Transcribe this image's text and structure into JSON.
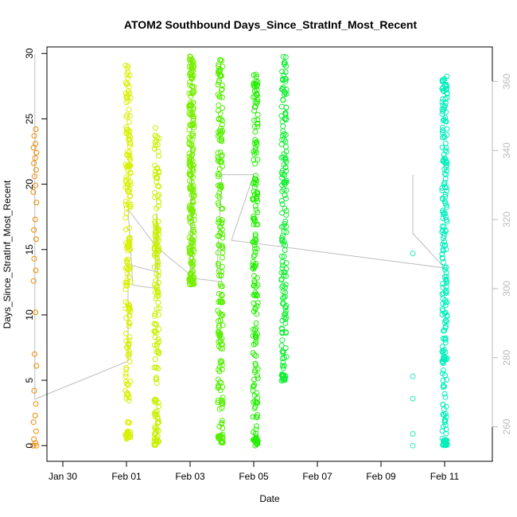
{
  "chart_data": {
    "type": "scatter",
    "title": "ATOM2 Southbound Days_Since_StratInf_Most_Recent",
    "xlabel": "Date",
    "ylabel": "Days_Since_StratInf_Most_Recent",
    "xlim": [
      "Jan 28 12:00",
      "Feb 11 12:00"
    ],
    "ylim": [
      -1.2,
      30.5
    ],
    "y2lim": [
      250,
      370
    ],
    "x_ticks": [
      "Jan 30",
      "Feb 01",
      "Feb 03",
      "Feb 05",
      "Feb 07",
      "Feb 09",
      "Feb 11"
    ],
    "y_ticks": [
      0,
      5,
      10,
      15,
      20,
      25,
      30
    ],
    "y2_ticks": [
      260,
      280,
      300,
      320,
      340,
      360
    ],
    "grid": false,
    "legend": "none",
    "marker": "open-circle",
    "clusters": [
      {
        "day": "Jan 29",
        "color": "#ee8800",
        "y_min": 0,
        "y_max": 24.3,
        "points": [
          [
            -0.05,
            0
          ],
          [
            -0.05,
            0
          ],
          [
            0.05,
            0
          ],
          [
            0.02,
            0.2
          ],
          [
            -0.03,
            0.5
          ],
          [
            0.04,
            1.1
          ],
          [
            -0.04,
            1.8
          ],
          [
            0.01,
            2.3
          ],
          [
            0.03,
            3.2
          ],
          [
            -0.02,
            4.2
          ],
          [
            0.05,
            6.1
          ],
          [
            -0.01,
            7.0
          ],
          [
            0.02,
            10.2
          ],
          [
            -0.04,
            12.6
          ],
          [
            0.03,
            13.4
          ],
          [
            -0.02,
            14.3
          ],
          [
            0.04,
            15.8
          ],
          [
            -0.03,
            16.5
          ],
          [
            0.01,
            17.3
          ],
          [
            0.05,
            18.6
          ],
          [
            -0.05,
            19.4
          ],
          [
            0.02,
            19.9
          ],
          [
            -0.01,
            20.6
          ],
          [
            0.04,
            21.1
          ],
          [
            -0.03,
            21.6
          ],
          [
            0.01,
            22.0
          ],
          [
            0.05,
            22.4
          ],
          [
            -0.04,
            22.8
          ],
          [
            0.02,
            23.1
          ],
          [
            -0.02,
            23.7
          ],
          [
            0.03,
            24.2
          ]
        ]
      },
      {
        "day": "Feb 01",
        "color": "#d8f000",
        "y_min": 0.5,
        "y_max": 29.3
      },
      {
        "day": "Feb 01 (late)",
        "color": "#c8f000",
        "y_min": 0,
        "y_max": 24.4
      },
      {
        "day": "Feb 03",
        "color": "#77ee00",
        "y_min": 12.3,
        "y_max": 29.8
      },
      {
        "day": "Feb 03 (late)",
        "color": "#55ee00",
        "y_min": 0.2,
        "y_max": 29.6
      },
      {
        "day": "Feb 05",
        "color": "#22ee00",
        "y_min": 0,
        "y_max": 28.6
      },
      {
        "day": "Feb 05 (late)",
        "color": "#11ee33",
        "y_min": 4.9,
        "y_max": 29.8
      },
      {
        "day": "Feb 10",
        "color": "#22eebb",
        "y_min": 0,
        "y_max": 14.8,
        "points": [
          [
            0.0,
            0
          ],
          [
            0.0,
            0.9
          ],
          [
            0.0,
            3.6
          ],
          [
            0.0,
            5.3
          ],
          [
            0.0,
            14.7
          ]
        ]
      },
      {
        "day": "Feb 11",
        "color": "#00eebb",
        "y_min": 0,
        "y_max": 28.6
      }
    ]
  }
}
